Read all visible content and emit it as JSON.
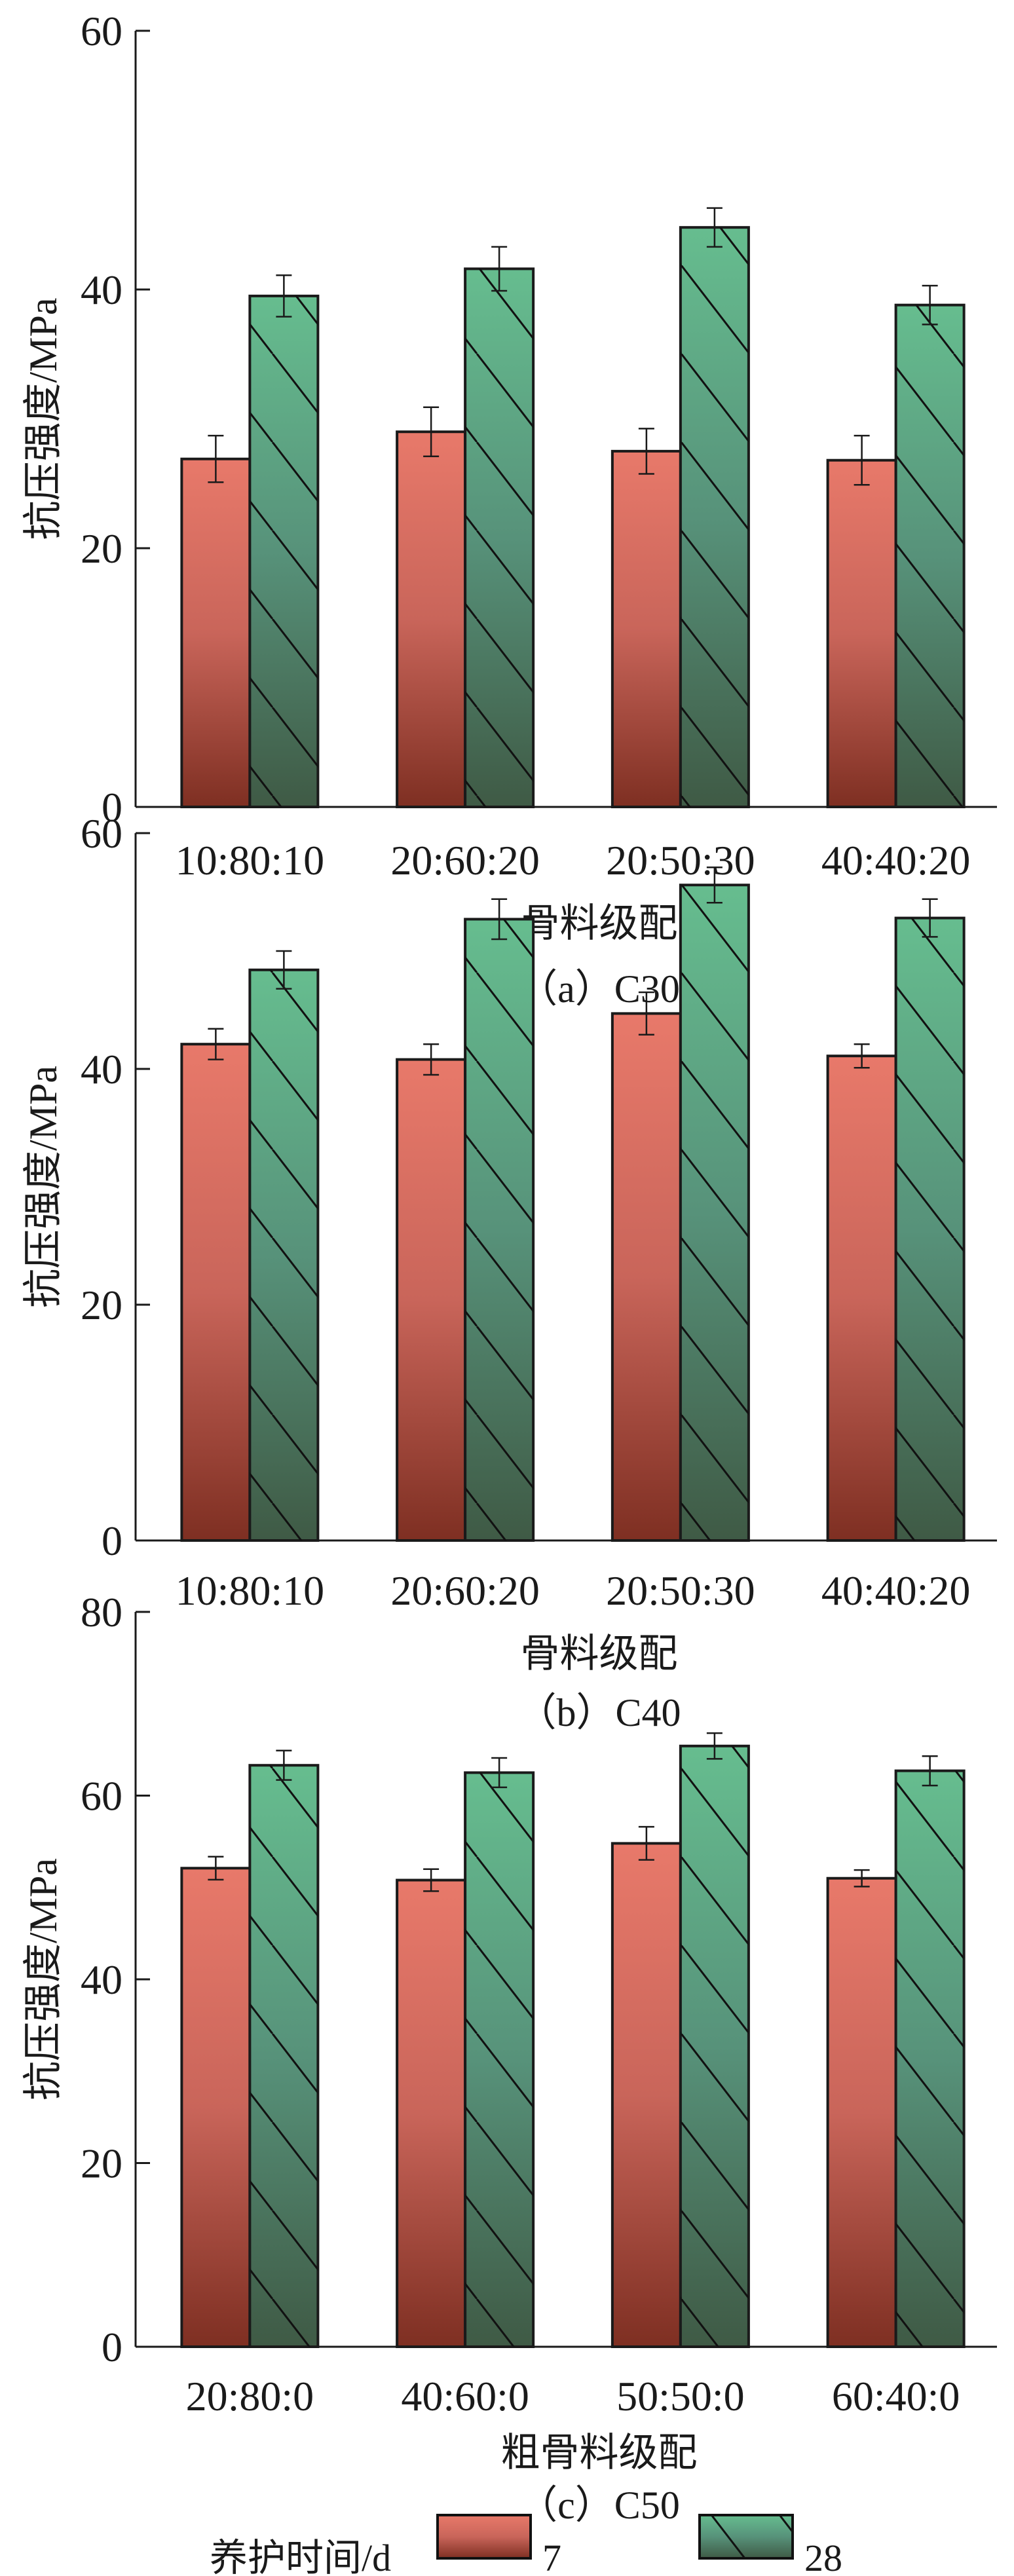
{
  "chart_data": [
    {
      "type": "bar",
      "caption": "（a）C30",
      "xlabel": "骨料级配",
      "ylabel": "抗压强度/MPa",
      "ylim": [
        0,
        60
      ],
      "yticks": [
        0,
        20,
        40,
        60
      ],
      "categories": [
        "10:80:10",
        "20:60:20",
        "20:50:30",
        "40:40:20"
      ],
      "series": [
        {
          "name": "7",
          "values": [
            26.9,
            29.0,
            27.5,
            26.8
          ],
          "errors": [
            1.8,
            1.9,
            1.75,
            1.9
          ]
        },
        {
          "name": "28",
          "values": [
            39.5,
            41.6,
            44.8,
            38.8
          ],
          "errors": [
            1.6,
            1.7,
            1.5,
            1.5
          ]
        }
      ]
    },
    {
      "type": "bar",
      "caption": "（b）C40",
      "xlabel": "骨料级配",
      "ylabel": "抗压强度/MPa",
      "ylim": [
        0,
        60
      ],
      "yticks": [
        0,
        20,
        40,
        60
      ],
      "categories": [
        "10:80:10",
        "20:60:20",
        "20:50:30",
        "40:40:20"
      ],
      "series": [
        {
          "name": "7",
          "values": [
            42.1,
            40.8,
            44.7,
            41.1
          ],
          "errors": [
            1.3,
            1.3,
            1.8,
            1.0
          ]
        },
        {
          "name": "28",
          "values": [
            48.4,
            52.7,
            55.6,
            52.8
          ],
          "errors": [
            1.6,
            1.7,
            1.5,
            1.6
          ]
        }
      ]
    },
    {
      "type": "bar",
      "caption": "（c）C50",
      "xlabel": "粗骨料级配",
      "ylabel": "抗压强度/MPa",
      "ylim": [
        0,
        80
      ],
      "yticks": [
        0,
        20,
        40,
        60,
        80
      ],
      "categories": [
        "20:80:0",
        "40:60:0",
        "50:50:0",
        "60:40:0"
      ],
      "series": [
        {
          "name": "7",
          "values": [
            52.1,
            50.8,
            54.8,
            51.0
          ],
          "errors": [
            1.25,
            1.2,
            1.8,
            0.9
          ]
        },
        {
          "name": "28",
          "values": [
            63.3,
            62.5,
            65.4,
            62.7
          ],
          "errors": [
            1.6,
            1.6,
            1.4,
            1.6
          ]
        }
      ]
    }
  ],
  "legend": {
    "title": "养护时间/d",
    "items": [
      {
        "label": "7",
        "style": "solid-red"
      },
      {
        "label": "28",
        "style": "hatched-green"
      }
    ]
  },
  "colors": {
    "red_top": "#e8796a",
    "red_bottom": "#7e2f22",
    "green_top": "#66bd8f",
    "green_bottom": "#3f5a45",
    "axis": "#1a1a1a"
  }
}
